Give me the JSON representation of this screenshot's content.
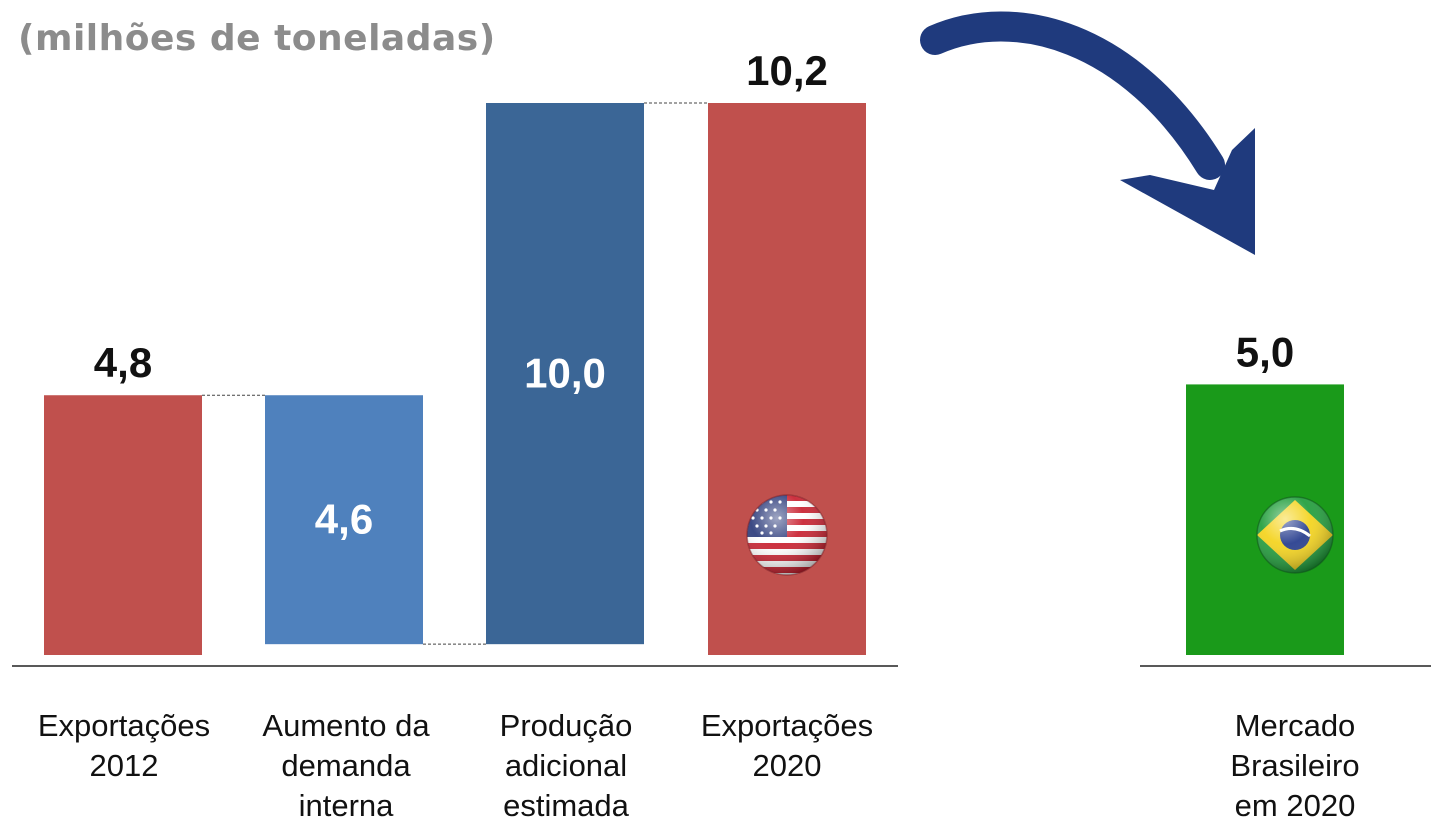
{
  "unit_label": "(milhões de toneladas)",
  "chart_data": [
    {
      "type": "bar",
      "subtype": "waterfall",
      "categories": [
        "Exportações\n2012",
        "Aumento da\ndemanda\ninterna",
        "Produção\nadicional\nestimada",
        "Exportações\n2020"
      ],
      "values": [
        4.8,
        -4.6,
        10.0,
        10.2
      ],
      "data_labels": [
        "4,8",
        "4,6",
        "10,0",
        "10,2"
      ],
      "label_positions": [
        "above",
        "inside",
        "inside",
        "above"
      ],
      "colors": [
        "#c0504d",
        "#4f81bd",
        "#3b6696",
        "#c0504d"
      ],
      "flag_icon": "usa-flag-icon",
      "ylim": [
        0,
        10.2
      ],
      "grid": false
    },
    {
      "type": "bar",
      "categories": [
        "Mercado\nBrasileiro\nem 2020"
      ],
      "values": [
        5.0
      ],
      "data_labels": [
        "5,0"
      ],
      "colors": [
        "#1a9a1a"
      ],
      "flag_icon": "brazil-flag-icon",
      "ylim": [
        0,
        10.2
      ],
      "grid": false
    }
  ],
  "arrow_color": "#1f3a7d",
  "label_colors": {
    "dark": "#111111",
    "light": "#ffffff"
  }
}
